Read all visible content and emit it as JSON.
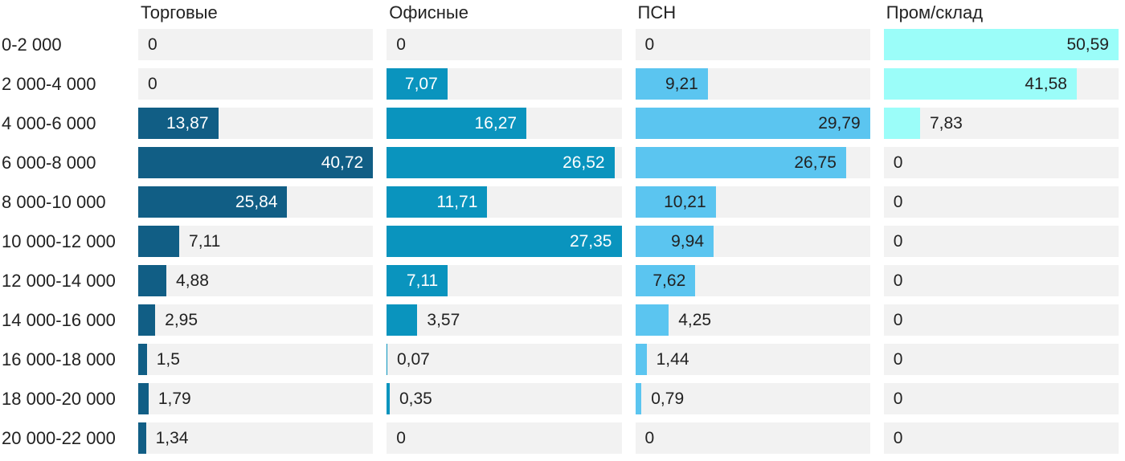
{
  "chart_data": {
    "type": "bar",
    "orientation": "horizontal",
    "layout": "small-multiples, one bar column per series, per-column max scaling",
    "title": "",
    "xlabel": "",
    "ylabel": "",
    "grid": false,
    "legend_position": "column-headers-top",
    "value_format": "decimal-comma",
    "track_color": "#f2f2f2",
    "text_color": "#222222",
    "categories": [
      "0-2 000",
      "2 000-4 000",
      "4 000-6 000",
      "6 000-8 000",
      "8 000-10 000",
      "10 000-12 000",
      "12 000-14 000",
      "14 000-16 000",
      "16 000-18 000",
      "18 000-20 000",
      "20 000-22 000"
    ],
    "series": [
      {
        "name": "Торговые",
        "color": "#115e85",
        "value_color_inside": "#ffffff",
        "values": [
          0,
          0,
          13.87,
          40.72,
          25.84,
          7.11,
          4.88,
          2.95,
          1.5,
          1.79,
          1.34
        ]
      },
      {
        "name": "Офисные",
        "color": "#0a94be",
        "value_color_inside": "#ffffff",
        "values": [
          0,
          7.07,
          16.27,
          26.52,
          11.71,
          27.35,
          7.11,
          3.57,
          0.07,
          0.35,
          0
        ]
      },
      {
        "name": "ПСН",
        "color": "#5bc5f0",
        "value_color_inside": "#222222",
        "values": [
          0,
          9.21,
          29.79,
          26.75,
          10.21,
          9.94,
          7.62,
          4.25,
          1.44,
          0.79,
          0
        ]
      },
      {
        "name": "Пром/склад",
        "color": "#9bfdf9",
        "value_color_inside": "#222222",
        "values": [
          50.59,
          41.58,
          7.83,
          0,
          0,
          0,
          0,
          0,
          0,
          0,
          0
        ]
      }
    ]
  }
}
